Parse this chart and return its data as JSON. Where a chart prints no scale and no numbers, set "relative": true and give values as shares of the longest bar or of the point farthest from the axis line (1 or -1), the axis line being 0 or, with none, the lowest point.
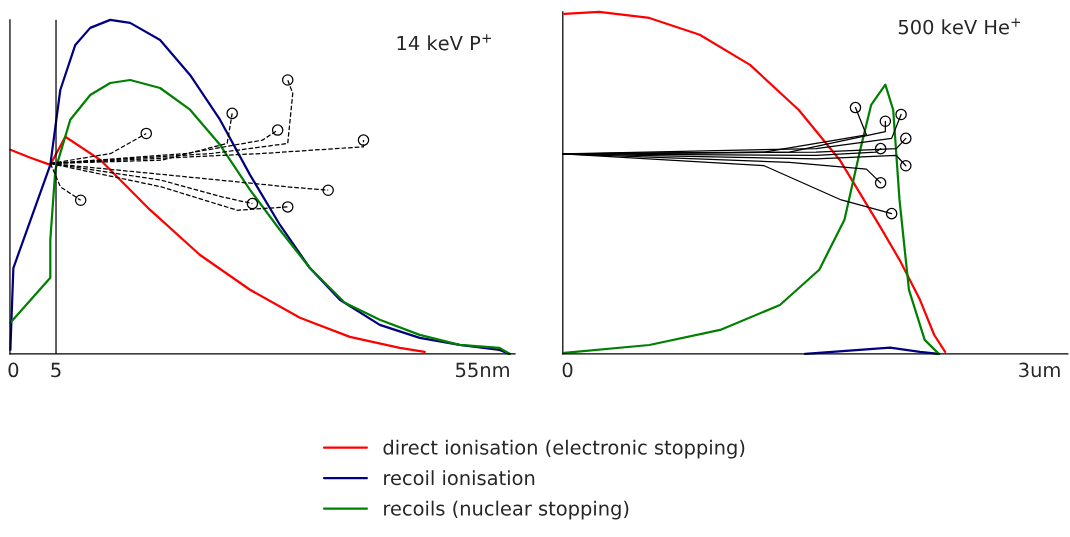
{
  "chart_data": [
    {
      "type": "line",
      "title": "14 keV P$^{+}$",
      "relative": true,
      "xlim": [
        -0.4,
        58.8
      ],
      "xticks": [
        0,
        5,
        {
          "value": 55,
          "label": "55nm"
        }
      ],
      "legend": "bottom",
      "grid": false,
      "ref_lines": [
        {
          "axis": "x",
          "value": 5,
          "color": "#000000",
          "line_style": "solid"
        }
      ],
      "series": [
        {
          "name": "direct ionisation (electronic stopping)",
          "color": "#ff0000",
          "x": [
            -0.35,
            2.0,
            4.33,
            6.09,
            10.18,
            16.03,
            21.88,
            27.74,
            33.59,
            39.44,
            45.29,
            48.22
          ],
          "values": [
            0.611,
            0.587,
            0.566,
            0.65,
            0.581,
            0.431,
            0.296,
            0.192,
            0.108,
            0.051,
            0.018,
            0.006
          ]
        },
        {
          "name": "recoil ionisation",
          "color": "#000080",
          "x": [
            -0.35,
            0,
            4.33,
            5.5,
            7.26,
            9.01,
            11.35,
            13.69,
            17.2,
            20.71,
            24.22,
            27.74,
            31.25,
            34.76,
            38.27,
            42.95,
            47.63,
            52.31,
            56.99,
            58.16
          ],
          "values": [
            0.012,
            0.257,
            0.566,
            0.79,
            0.925,
            0.976,
            1,
            0.991,
            0.94,
            0.835,
            0.701,
            0.536,
            0.386,
            0.257,
            0.162,
            0.087,
            0.048,
            0.027,
            0.012,
            0
          ]
        },
        {
          "name": "recoils (nuclear stopping)",
          "color": "#008000",
          "x": [
            -0.35,
            4.33,
            4.33,
            4.92,
            6.67,
            9.01,
            11.35,
            13.69,
            17.2,
            20.71,
            24.22,
            27.74,
            31.25,
            34.76,
            38.85,
            42.95,
            47.63,
            52.31,
            56.99,
            58.16
          ],
          "values": [
            0.093,
            0.228,
            0.341,
            0.551,
            0.701,
            0.775,
            0.811,
            0.82,
            0.796,
            0.731,
            0.626,
            0.491,
            0.371,
            0.257,
            0.153,
            0.102,
            0.057,
            0.027,
            0.018,
            0
          ]
        },
        {
          "color": "#000000",
          "line_style": "dashed",
          "x": [
            4.34,
            11.44,
            15.58
          ],
          "values": [
            0.57,
            0.6,
            0.66
          ]
        },
        {
          "color": "#000000",
          "line_style": "dashed",
          "x": [
            4.34,
            17.36,
            25.06,
            25.65
          ],
          "values": [
            0.57,
            0.58,
            0.63,
            0.72
          ]
        },
        {
          "color": "#000000",
          "line_style": "dashed",
          "x": [
            4.34,
            20.32,
            29.2,
            30.98
          ],
          "values": [
            0.57,
            0.6,
            0.64,
            0.67
          ]
        },
        {
          "color": "#000000",
          "line_style": "dashed",
          "x": [
            4.34,
            23.28,
            32.16,
            32.75,
            32.16
          ],
          "values": [
            0.57,
            0.6,
            0.63,
            0.78,
            0.82
          ]
        },
        {
          "color": "#000000",
          "line_style": "dashed",
          "x": [
            4.34,
            29.2,
            41.04,
            41.04
          ],
          "values": [
            0.57,
            0.6,
            0.62,
            0.64
          ]
        },
        {
          "color": "#000000",
          "line_style": "dashed",
          "x": [
            4.34,
            20.32,
            32.16,
            36.9
          ],
          "values": [
            0.57,
            0.53,
            0.5,
            0.49
          ]
        },
        {
          "color": "#000000",
          "line_style": "dashed",
          "x": [
            4.34,
            17.36,
            24.46,
            28.02
          ],
          "values": [
            0.57,
            0.52,
            0.47,
            0.45
          ]
        },
        {
          "color": "#000000",
          "line_style": "dashed",
          "x": [
            4.34,
            17.36,
            26.24,
            32.16
          ],
          "values": [
            0.57,
            0.5,
            0.43,
            0.44
          ]
        },
        {
          "color": "#000000",
          "line_style": "dashed",
          "x": [
            4.34,
            5.52,
            7.89
          ],
          "values": [
            0.57,
            0.5,
            0.46
          ]
        },
        {
          "type": "scatter",
          "marker": "circle",
          "color": "#000000",
          "x": [
            15.58,
            25.65,
            30.98,
            32.16,
            41.04,
            36.9,
            28.02,
            32.16,
            7.89
          ],
          "values": [
            0.66,
            0.72,
            0.67,
            0.82,
            0.64,
            0.49,
            0.45,
            0.44,
            0.46
          ]
        }
      ]
    },
    {
      "type": "line",
      "title": "500 keV He$^{+}$",
      "relative": true,
      "xlim": [
        -0.03,
        3.18
      ],
      "xticks": [
        0,
        {
          "value": 3,
          "label": "3um"
        }
      ],
      "grid": false,
      "series": [
        {
          "color": "#ff0000",
          "x": [
            -0.02,
            0.2,
            0.52,
            0.84,
            1.16,
            1.47,
            1.73,
            1.98,
            2.11,
            2.24,
            2.33,
            2.4
          ],
          "values": [
            0.994,
            1,
            0.982,
            0.933,
            0.845,
            0.713,
            0.567,
            0.377,
            0.275,
            0.158,
            0.056,
            0.006
          ]
        },
        {
          "color": "#000080",
          "x": [
            1.51,
            2.05,
            2.24,
            2.36
          ],
          "values": [
            0,
            0.018,
            0.006,
            0
          ]
        },
        {
          "color": "#008000",
          "x": [
            -0.02,
            0.52,
            0.97,
            1.35,
            1.6,
            1.76,
            1.86,
            1.93,
            2.02,
            2.07,
            2.11,
            2.17,
            2.27,
            2.36
          ],
          "values": [
            0.003,
            0.026,
            0.07,
            0.143,
            0.246,
            0.392,
            0.596,
            0.728,
            0.787,
            0.713,
            0.45,
            0.187,
            0.041,
            0
          ]
        },
        {
          "color": "#000000",
          "x": [
            -0.03,
            1.25,
            1.9,
            1.83
          ],
          "values": [
            0.585,
            0.59,
            0.64,
            0.72
          ]
        },
        {
          "color": "#000000",
          "x": [
            -0.03,
            1.41,
            2.02,
            2.02
          ],
          "values": [
            0.585,
            0.59,
            0.65,
            0.68
          ]
        },
        {
          "color": "#000000",
          "x": [
            -0.03,
            1.58,
            2.06,
            2.12
          ],
          "values": [
            0.585,
            0.6,
            0.63,
            0.7
          ]
        },
        {
          "color": "#000000",
          "x": [
            -0.03,
            1.58,
            2.09,
            2.15
          ],
          "values": [
            0.585,
            0.59,
            0.6,
            0.63
          ]
        },
        {
          "color": "#000000",
          "x": [
            -0.03,
            1.58,
            1.96,
            1.99
          ],
          "values": [
            0.585,
            0.58,
            0.59,
            0.6
          ]
        },
        {
          "color": "#000000",
          "x": [
            -0.03,
            1.58,
            2.09,
            2.15
          ],
          "values": [
            0.585,
            0.57,
            0.58,
            0.55
          ]
        },
        {
          "color": "#000000",
          "x": [
            -0.03,
            1.41,
            1.9,
            1.99
          ],
          "values": [
            0.585,
            0.56,
            0.54,
            0.5
          ]
        },
        {
          "color": "#000000",
          "x": [
            -0.03,
            1.25,
            1.74,
            2.06
          ],
          "values": [
            0.585,
            0.55,
            0.45,
            0.41
          ]
        },
        {
          "type": "scatter",
          "marker": "circle",
          "color": "#000000",
          "x": [
            1.83,
            2.02,
            2.12,
            2.15,
            1.99,
            2.15,
            1.99,
            2.06
          ],
          "values": [
            0.72,
            0.68,
            0.7,
            0.63,
            0.6,
            0.55,
            0.5,
            0.41
          ]
        }
      ]
    }
  ]
}
